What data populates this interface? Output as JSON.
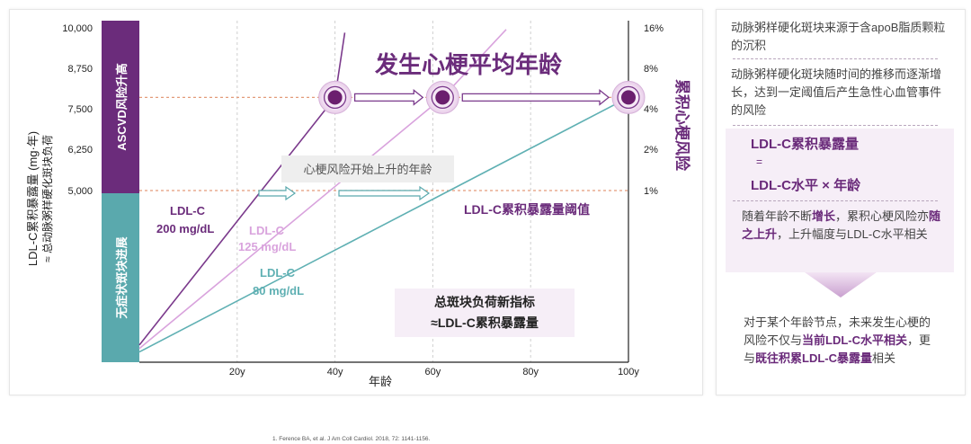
{
  "chart_data": {
    "type": "line",
    "title": "发生心梗平均年龄",
    "xlabel": "年龄",
    "ylabel_left": "LDL-C累积暴露量 (mg·年)",
    "ylabel_left_sub": "≈ 总动脉粥样硬化斑块负荷",
    "ylabel_right": "累积心梗风险",
    "x_ticks": [
      "20y",
      "40y",
      "60y",
      "80y",
      "100y"
    ],
    "x_tick_values": [
      20,
      40,
      60,
      80,
      100
    ],
    "xlim": [
      0,
      100
    ],
    "y_ticks_left": [
      "10,000",
      "8,750",
      "7,500",
      "6,250",
      "5,000"
    ],
    "y_tick_values_left": [
      10000,
      8750,
      7500,
      6250,
      5000
    ],
    "y_ticks_right": [
      "16%",
      "8%",
      "4%",
      "2%",
      "1%"
    ],
    "ylim_left": [
      0,
      10000
    ],
    "series": [
      {
        "name": "LDL-C 200 mg/dL",
        "label_line1": "LDL-C",
        "label_line2": "200 mg/dL",
        "color": "#7b3a8c",
        "points": [
          [
            0,
            500
          ],
          [
            40,
            7850
          ],
          [
            42,
            9850
          ]
        ]
      },
      {
        "name": "LDL-C 125 mg/dL",
        "label_line1": "LDL-C",
        "label_line2": "125 mg/dL",
        "color": "#d9a3dd",
        "points": [
          [
            0,
            400
          ],
          [
            62,
            7850
          ],
          [
            75,
            9950
          ]
        ]
      },
      {
        "name": "LDL-C 80 mg/dL",
        "label_line1": "LDL-C",
        "label_line2": "80 mg/dL",
        "color": "#5fb0b3",
        "points": [
          [
            0,
            300
          ],
          [
            100,
            7850
          ]
        ]
      }
    ],
    "threshold_label": "LDL-C累积暴露量阈值",
    "band_upper_label": "ASCVD风险升高",
    "band_lower_label": "无症状斑块进展",
    "annotation_start": "心梗风险开始上升的年龄",
    "annotation_box_line1": "总斑块负荷新指标",
    "annotation_box_line2": "≈LDL-C累积暴露量",
    "mi_points": [
      40,
      62,
      100
    ],
    "mi_level": 7850,
    "threshold_level": 5000
  },
  "side": {
    "text1": "动脉粥样硬化斑块来源于含apoB脂质颗粒的沉积",
    "text2": "动脉粥样硬化斑块随时间的推移而逐渐增长，达到一定阈值后产生急性心血管事件的风险",
    "formula1": "LDL-C累积暴露量",
    "formula_eq": "=",
    "formula2": "LDL-C水平 × 年龄",
    "text3_a": "随着年龄不断",
    "text3_b": "增长",
    "text3_c": "，累积心梗风险亦",
    "text3_d": "随之上升",
    "text3_e": "，上升幅度与LDL-C水平相关",
    "text4_a": "对于某个年龄节点，未来发生心梗的风险不仅与",
    "text4_b": "当前LDL-C水平相关",
    "text4_c": "，更与",
    "text4_d": "既往积累LDL-C暴露量",
    "text4_e": "相关"
  },
  "footnote": "1.  Ference BA, et al. J Am Coll Cardiol. 2018, 72: 1141-1156."
}
